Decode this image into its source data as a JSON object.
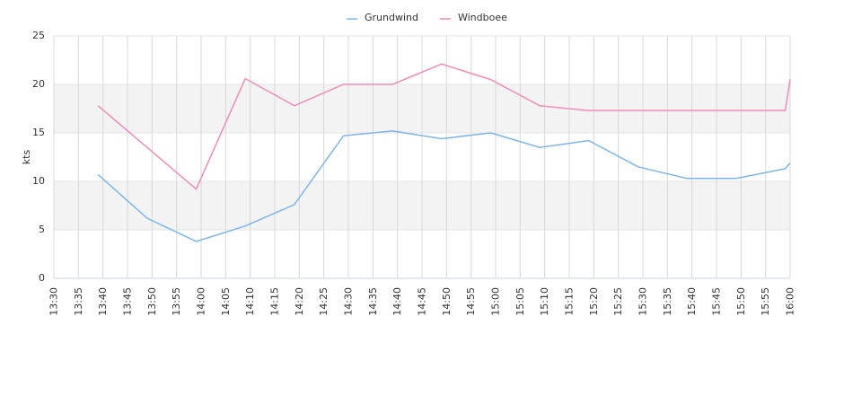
{
  "chart_data": {
    "type": "line",
    "y_label": "kts",
    "x": [
      "13:39",
      "13:49",
      "13:59",
      "14:09",
      "14:19",
      "14:29",
      "14:39",
      "14:49",
      "14:59",
      "15:09",
      "15:19",
      "15:29",
      "15:39",
      "15:49",
      "15:59",
      "16:00"
    ],
    "series": [
      {
        "name": "Grundwind",
        "color": "#7cb5ec",
        "values": [
          10.7,
          6.2,
          3.8,
          5.4,
          7.6,
          14.7,
          15.2,
          14.4,
          15.0,
          13.5,
          14.2,
          11.5,
          10.3,
          10.3,
          11.3,
          11.9
        ]
      },
      {
        "name": "Windboee",
        "color": "#f08cb8",
        "values": [
          17.8,
          13.5,
          9.2,
          20.6,
          17.8,
          20.0,
          20.0,
          22.1,
          20.5,
          17.8,
          17.3,
          17.3,
          17.3,
          17.3,
          17.3,
          20.5
        ]
      }
    ],
    "xlim": [
      "13:30",
      "16:00"
    ],
    "xticks": [
      "13:30",
      "13:35",
      "13:40",
      "13:45",
      "13:50",
      "13:55",
      "14:00",
      "14:05",
      "14:10",
      "14:15",
      "14:20",
      "14:25",
      "14:30",
      "14:35",
      "14:40",
      "14:45",
      "14:50",
      "14:55",
      "15:00",
      "15:05",
      "15:10",
      "15:15",
      "15:20",
      "15:25",
      "15:30",
      "15:35",
      "15:40",
      "15:45",
      "15:50",
      "15:55",
      "16:00"
    ],
    "ylim": [
      0,
      25
    ],
    "yticks": [
      0,
      5,
      10,
      15,
      20,
      25
    ],
    "grid": true,
    "alternate_band_color": "#f3f3f3",
    "legend": "top"
  }
}
